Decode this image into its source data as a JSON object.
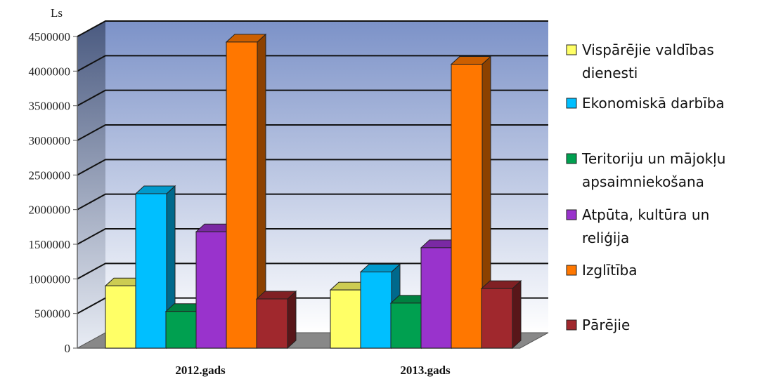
{
  "chart_data": {
    "type": "bar",
    "unit_label": "Ls",
    "categories": [
      "2012.gads",
      "2013.gads"
    ],
    "ylim": [
      0,
      4500000
    ],
    "yticks": [
      "0",
      "500000",
      "1000000",
      "1500000",
      "2000000",
      "2500000",
      "3000000",
      "3500000",
      "4000000",
      "4500000"
    ],
    "grid": true,
    "legend_position": "right",
    "series": [
      {
        "name": "Vispārējie valdības dienesti",
        "name_lines": [
          "Vispārējie valdības",
          "dienesti"
        ],
        "color": "#ffff66",
        "values": [
          900000,
          840000
        ]
      },
      {
        "name": "Ekonomiskā darbība",
        "name_lines": [
          "Ekonomiskā darbība"
        ],
        "color": "#00bfff",
        "values": [
          2230000,
          1100000
        ]
      },
      {
        "name": "Teritoriju un mājokļu apsaimniekošana",
        "name_lines": [
          "Teritoriju un mājokļu",
          "apsaimniekošana"
        ],
        "color": "#00a050",
        "values": [
          530000,
          650000
        ]
      },
      {
        "name": "Atpūta, kultūra un reliģija",
        "name_lines": [
          "Atpūta, kultūra un",
          "reliģija"
        ],
        "color": "#9933cc",
        "values": [
          1680000,
          1450000
        ]
      },
      {
        "name": "Izglītība",
        "name_lines": [
          "Izglītība"
        ],
        "color": "#ff7700",
        "values": [
          4420000,
          4100000
        ]
      },
      {
        "name": "Pārējie",
        "name_lines": [
          "Pārējie"
        ],
        "color": "#a0282d",
        "values": [
          710000,
          860000
        ]
      }
    ]
  }
}
